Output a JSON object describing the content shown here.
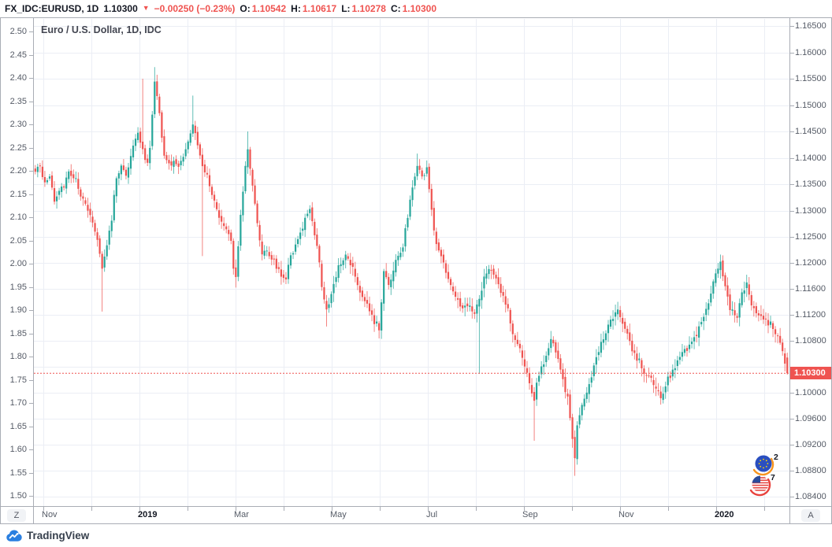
{
  "header": {
    "symbol": "FX_IDC:EURUSD, 1D",
    "last": "1.10300",
    "arrow": "▼",
    "change": "−0.00250 (−0.23%)",
    "o_label": "O:",
    "o": "1.10542",
    "h_label": "H:",
    "h": "1.10617",
    "l_label": "L:",
    "l": "1.10278",
    "c_label": "C:",
    "c": "1.10300"
  },
  "chart": {
    "title": "Euro / U.S. Dollar, 1D, IDC",
    "price_label": "1.10300"
  },
  "buttons": {
    "left_corner": "Z",
    "right_corner": "A"
  },
  "badges": [
    {
      "flag": "eu-flag",
      "count": "2"
    },
    {
      "flag": "us-flag",
      "count": "7"
    }
  ],
  "footer": {
    "brand": "TradingView"
  },
  "colors": {
    "up": "#26a69a",
    "down": "#ef5350",
    "grid": "#ebeef5",
    "axis_border": "#a9adb5",
    "label_bg": "#ef5350",
    "text": "#131722",
    "axis_text": "#555b66",
    "logo_blue": "#2a7fe0"
  },
  "chart_data": {
    "type": "candlestick",
    "title": "Euro / U.S. Dollar, 1D, IDC",
    "symbol": "EURUSD",
    "timeframe": "1D",
    "data_source": "IDC",
    "price_line": 1.103,
    "y_range_right": [
      1.084,
      1.165
    ],
    "y_range_left": [
      1.5,
      2.5
    ],
    "n_candles": 316,
    "left_axis_labels": [
      "2.50",
      "2.45",
      "2.40",
      "2.35",
      "2.30",
      "2.25",
      "2.20",
      "2.15",
      "2.10",
      "2.05",
      "2.00",
      "1.95",
      "1.90",
      "1.85",
      "1.80",
      "1.75",
      "1.70",
      "1.65",
      "1.60",
      "1.55",
      "1.50"
    ],
    "right_axis_labels": [
      {
        "t": "1.16500",
        "p": 1.165
      },
      {
        "t": "1.16000",
        "p": 1.16
      },
      {
        "t": "1.15500",
        "p": 1.155
      },
      {
        "t": "1.15000",
        "p": 1.15
      },
      {
        "t": "1.14500",
        "p": 1.145
      },
      {
        "t": "1.14000",
        "p": 1.14
      },
      {
        "t": "1.13500",
        "p": 1.135
      },
      {
        "t": "1.13000",
        "p": 1.13
      },
      {
        "t": "1.12500",
        "p": 1.125
      },
      {
        "t": "1.12000",
        "p": 1.12
      },
      {
        "t": "1.11600",
        "p": 1.116
      },
      {
        "t": "1.11200",
        "p": 1.112
      },
      {
        "t": "1.10800",
        "p": 1.108
      },
      {
        "t": "1.10000",
        "p": 1.1
      },
      {
        "t": "1.09600",
        "p": 1.096
      },
      {
        "t": "1.09200",
        "p": 1.092
      },
      {
        "t": "1.08800",
        "p": 1.088
      },
      {
        "t": "1.08400",
        "p": 1.084
      }
    ],
    "grid_extra_prices": [
      1.104
    ],
    "time_axis_labels": [
      {
        "t": "Nov",
        "k": 0,
        "year": false
      },
      {
        "t": "2019",
        "k": 2,
        "year": true
      },
      {
        "t": "Mar",
        "k": 4,
        "year": false
      },
      {
        "t": "May",
        "k": 6,
        "year": false
      },
      {
        "t": "Jul",
        "k": 8,
        "year": false
      },
      {
        "t": "Sep",
        "k": 10,
        "year": false
      },
      {
        "t": "Nov",
        "k": 12,
        "year": false
      },
      {
        "t": "2020",
        "k": 14,
        "year": true
      }
    ],
    "n_time_ticks": 16,
    "close_anchors": [
      [
        0,
        1.1372
      ],
      [
        2,
        1.139
      ],
      [
        4,
        1.135
      ],
      [
        6,
        1.1365
      ],
      [
        8,
        1.132
      ],
      [
        10,
        1.1338
      ],
      [
        12,
        1.1345
      ],
      [
        14,
        1.137
      ],
      [
        17,
        1.1355
      ],
      [
        19,
        1.1325
      ],
      [
        22,
        1.13
      ],
      [
        24,
        1.1275
      ],
      [
        26,
        1.124
      ],
      [
        28,
        1.119
      ],
      [
        29,
        1.121
      ],
      [
        32,
        1.1285
      ],
      [
        34,
        1.1365
      ],
      [
        36,
        1.1388
      ],
      [
        38,
        1.136
      ],
      [
        40,
        1.1402
      ],
      [
        43,
        1.1448
      ],
      [
        45,
        1.141
      ],
      [
        47,
        1.139
      ],
      [
        48,
        1.1425
      ],
      [
        50,
        1.1545
      ],
      [
        52,
        1.148
      ],
      [
        54,
        1.1402
      ],
      [
        56,
        1.1388
      ],
      [
        58,
        1.1388
      ],
      [
        60,
        1.138
      ],
      [
        62,
        1.1402
      ],
      [
        64,
        1.1425
      ],
      [
        66,
        1.1462
      ],
      [
        68,
        1.1425
      ],
      [
        70,
        1.138
      ],
      [
        72,
        1.1362
      ],
      [
        74,
        1.1328
      ],
      [
        76,
        1.1298
      ],
      [
        78,
        1.1275
      ],
      [
        80,
        1.1262
      ],
      [
        82,
        1.124
      ],
      [
        83,
        1.119
      ],
      [
        84,
        1.1176
      ],
      [
        86,
        1.129
      ],
      [
        87,
        1.134
      ],
      [
        89,
        1.142
      ],
      [
        91,
        1.135
      ],
      [
        93,
        1.127
      ],
      [
        95,
        1.1215
      ],
      [
        97,
        1.122
      ],
      [
        100,
        1.12
      ],
      [
        103,
        1.1185
      ],
      [
        105,
        1.1175
      ],
      [
        107,
        1.121
      ],
      [
        110,
        1.1245
      ],
      [
        113,
        1.128
      ],
      [
        115,
        1.13
      ],
      [
        118,
        1.123
      ],
      [
        120,
        1.116
      ],
      [
        122,
        1.1125
      ],
      [
        124,
        1.115
      ],
      [
        127,
        1.119
      ],
      [
        130,
        1.121
      ],
      [
        133,
        1.119
      ],
      [
        136,
        1.115
      ],
      [
        139,
        1.1135
      ],
      [
        142,
        1.111
      ],
      [
        144,
        1.11
      ],
      [
        146,
        1.119
      ],
      [
        148,
        1.116
      ],
      [
        151,
        1.12
      ],
      [
        154,
        1.123
      ],
      [
        156,
        1.129
      ],
      [
        158,
        1.135
      ],
      [
        160,
        1.1385
      ],
      [
        162,
        1.136
      ],
      [
        164,
        1.138
      ],
      [
        166,
        1.13
      ],
      [
        168,
        1.123
      ],
      [
        170,
        1.121
      ],
      [
        172,
        1.1185
      ],
      [
        174,
        1.116
      ],
      [
        177,
        1.114
      ],
      [
        179,
        1.1128
      ],
      [
        181,
        1.1132
      ],
      [
        184,
        1.112
      ],
      [
        186,
        1.114
      ],
      [
        188,
        1.1175
      ],
      [
        190,
        1.1188
      ],
      [
        193,
        1.1175
      ],
      [
        195,
        1.1155
      ],
      [
        197,
        1.114
      ],
      [
        200,
        1.1096
      ],
      [
        202,
        1.1072
      ],
      [
        204,
        1.1053
      ],
      [
        207,
        1.1011
      ],
      [
        209,
        1.0988
      ],
      [
        211,
        1.103
      ],
      [
        214,
        1.106
      ],
      [
        216,
        1.1078
      ],
      [
        218,
        1.1065
      ],
      [
        220,
        1.1035
      ],
      [
        223,
        1.0988
      ],
      [
        225,
        1.0926
      ],
      [
        226,
        1.0896
      ],
      [
        227,
        1.095
      ],
      [
        230,
        1.0988
      ],
      [
        232,
        1.101
      ],
      [
        234,
        1.104
      ],
      [
        237,
        1.1072
      ],
      [
        239,
        1.109
      ],
      [
        241,
        1.1108
      ],
      [
        244,
        1.1126
      ],
      [
        246,
        1.1102
      ],
      [
        248,
        1.109
      ],
      [
        250,
        1.1065
      ],
      [
        253,
        1.1048
      ],
      [
        255,
        1.1035
      ],
      [
        257,
        1.1023
      ],
      [
        260,
        1.1005
      ],
      [
        262,
        1.0988
      ],
      [
        264,
        1.101
      ],
      [
        267,
        1.1035
      ],
      [
        269,
        1.1053
      ],
      [
        271,
        1.1058
      ],
      [
        274,
        1.1072
      ],
      [
        276,
        1.1084
      ],
      [
        278,
        1.1096
      ],
      [
        280,
        1.1114
      ],
      [
        283,
        1.115
      ],
      [
        285,
        1.1181
      ],
      [
        287,
        1.1199
      ],
      [
        289,
        1.1162
      ],
      [
        291,
        1.1126
      ],
      [
        294,
        1.1114
      ],
      [
        296,
        1.115
      ],
      [
        298,
        1.1166
      ],
      [
        300,
        1.1132
      ],
      [
        302,
        1.112
      ],
      [
        305,
        1.1114
      ],
      [
        307,
        1.1108
      ],
      [
        309,
        1.1102
      ],
      [
        311,
        1.109
      ],
      [
        313,
        1.1058
      ],
      [
        315,
        1.103
      ]
    ],
    "spikes": [
      {
        "i": 28,
        "t": "l",
        "p": 1.1125
      },
      {
        "i": 45,
        "t": "h",
        "p": 1.155
      },
      {
        "i": 50,
        "t": "h",
        "p": 1.1572
      },
      {
        "i": 66,
        "t": "h",
        "p": 1.1518
      },
      {
        "i": 70,
        "t": "l",
        "p": 1.1213
      },
      {
        "i": 84,
        "t": "l",
        "p": 1.1162
      },
      {
        "i": 89,
        "t": "h",
        "p": 1.145
      },
      {
        "i": 115,
        "t": "h",
        "p": 1.131
      },
      {
        "i": 122,
        "t": "l",
        "p": 1.1102
      },
      {
        "i": 144,
        "t": "l",
        "p": 1.109
      },
      {
        "i": 160,
        "t": "h",
        "p": 1.1408
      },
      {
        "i": 186,
        "t": "l",
        "p": 1.1029
      },
      {
        "i": 209,
        "t": "l",
        "p": 1.0926
      },
      {
        "i": 226,
        "t": "l",
        "p": 1.0872
      },
      {
        "i": 244,
        "t": "h",
        "p": 1.114
      },
      {
        "i": 287,
        "t": "h",
        "p": 1.1216
      },
      {
        "i": 298,
        "t": "h",
        "p": 1.1179
      }
    ],
    "last_candle": {
      "o": 1.10542,
      "h": 1.10617,
      "l": 1.10278,
      "c": 1.103
    }
  }
}
